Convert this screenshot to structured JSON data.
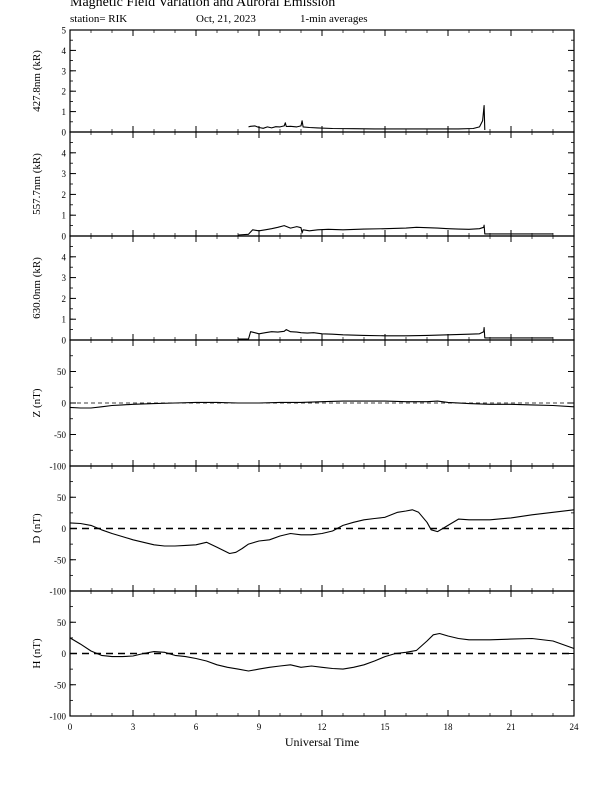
{
  "header": {
    "title": "Magnetic Field Variation and Auroral Emission",
    "station": "station= RIK",
    "date": "Oct, 21, 2023",
    "averaging": "1-min averages"
  },
  "chart_data": [
    {
      "type": "line",
      "ylabel": "427.8nm (kR)",
      "ylim": [
        0,
        5
      ],
      "yticks": [
        0,
        1,
        2,
        3,
        4,
        5
      ],
      "baseline": false,
      "x": [
        8.5,
        8.6,
        8.8,
        9.0,
        9.2,
        9.4,
        9.6,
        9.8,
        10.0,
        10.2,
        10.25,
        10.3,
        10.5,
        10.8,
        11.0,
        11.05,
        11.1,
        11.4,
        11.8,
        12.5,
        13.5,
        14.5,
        15.5,
        16.5,
        17.5,
        18.5,
        19.2,
        19.5,
        19.65,
        19.72,
        19.75
      ],
      "y": [
        0.25,
        0.28,
        0.3,
        0.22,
        0.18,
        0.25,
        0.2,
        0.26,
        0.25,
        0.3,
        0.45,
        0.27,
        0.28,
        0.25,
        0.3,
        0.55,
        0.25,
        0.22,
        0.2,
        0.17,
        0.16,
        0.15,
        0.15,
        0.15,
        0.15,
        0.15,
        0.17,
        0.25,
        0.55,
        1.3,
        0.1
      ]
    },
    {
      "type": "line",
      "ylabel": "557.7nm (kR)",
      "ylim": [
        0,
        5
      ],
      "yticks": [
        0,
        1,
        2,
        3,
        4
      ],
      "baseline": false,
      "x": [
        8.0,
        8.5,
        8.7,
        9.0,
        9.3,
        9.6,
        9.9,
        10.2,
        10.5,
        10.8,
        11.0,
        11.05,
        11.1,
        11.4,
        11.8,
        12.3,
        13.0,
        14.0,
        15.0,
        16.0,
        16.5,
        17.0,
        17.5,
        18.0,
        18.5,
        19.0,
        19.5,
        19.7,
        19.72,
        19.75,
        20.5,
        21.5,
        22.5,
        23.0
      ],
      "y": [
        0.05,
        0.08,
        0.3,
        0.25,
        0.3,
        0.35,
        0.42,
        0.5,
        0.38,
        0.45,
        0.4,
        0.15,
        0.3,
        0.25,
        0.3,
        0.32,
        0.3,
        0.33,
        0.35,
        0.38,
        0.42,
        0.4,
        0.38,
        0.35,
        0.33,
        0.32,
        0.35,
        0.42,
        0.52,
        0.1,
        0.1,
        0.1,
        0.1,
        0.1
      ]
    },
    {
      "type": "line",
      "ylabel": "630.0nm (kR)",
      "ylim": [
        0,
        5
      ],
      "yticks": [
        0,
        1,
        2,
        3,
        4
      ],
      "baseline": false,
      "x": [
        8.0,
        8.5,
        8.6,
        8.8,
        9.0,
        9.3,
        9.6,
        9.9,
        10.2,
        10.3,
        10.5,
        10.8,
        11.0,
        11.3,
        11.6,
        12.0,
        12.5,
        13.0,
        14.0,
        15.0,
        16.0,
        17.0,
        18.0,
        19.0,
        19.5,
        19.7,
        19.72,
        19.75,
        20.5,
        21.5,
        22.5,
        23.0
      ],
      "y": [
        0.05,
        0.05,
        0.4,
        0.35,
        0.3,
        0.35,
        0.4,
        0.38,
        0.42,
        0.5,
        0.4,
        0.38,
        0.35,
        0.33,
        0.35,
        0.3,
        0.28,
        0.25,
        0.22,
        0.2,
        0.2,
        0.22,
        0.25,
        0.28,
        0.3,
        0.4,
        0.6,
        0.1,
        0.1,
        0.1,
        0.1,
        0.1
      ]
    },
    {
      "type": "line",
      "ylabel": "Z (nT)",
      "ylim": [
        -100,
        100
      ],
      "yticks": [
        -100,
        -50,
        0,
        50
      ],
      "baseline": true,
      "x": [
        0,
        0.5,
        1,
        1.5,
        2,
        2.5,
        3,
        4,
        5,
        6,
        7,
        8,
        9,
        10,
        11,
        12,
        13,
        14,
        15,
        16,
        17,
        17.5,
        18,
        19,
        20,
        21,
        22,
        23,
        24
      ],
      "y": [
        -7,
        -8,
        -8,
        -6,
        -4,
        -3,
        -2,
        -1,
        0,
        1,
        1,
        0,
        0,
        1,
        1,
        2,
        3,
        3,
        3,
        2,
        2,
        3,
        1,
        -1,
        -2,
        -2,
        -3,
        -4,
        -6
      ]
    },
    {
      "type": "line",
      "ylabel": "D (nT)",
      "ylim": [
        -100,
        100
      ],
      "yticks": [
        -100,
        -50,
        0,
        50
      ],
      "baseline": true,
      "x": [
        0,
        0.5,
        1,
        1.5,
        2,
        2.5,
        3,
        3.5,
        4,
        4.5,
        5,
        5.5,
        6,
        6.5,
        7,
        7.3,
        7.6,
        7.9,
        8.2,
        8.5,
        9,
        9.5,
        10,
        10.5,
        11,
        11.5,
        12,
        12.5,
        13,
        13.5,
        14,
        14.5,
        15,
        15.3,
        15.6,
        16,
        16.3,
        16.6,
        17,
        17.2,
        17.5,
        18,
        18.5,
        19,
        20,
        21,
        22,
        23,
        24
      ],
      "y": [
        9,
        8,
        5,
        -2,
        -8,
        -13,
        -18,
        -22,
        -26,
        -28,
        -28,
        -27,
        -26,
        -22,
        -30,
        -35,
        -40,
        -38,
        -32,
        -25,
        -20,
        -18,
        -12,
        -8,
        -10,
        -10,
        -8,
        -4,
        5,
        10,
        14,
        16,
        18,
        22,
        26,
        28,
        30,
        26,
        10,
        -2,
        -5,
        5,
        15,
        14,
        14,
        17,
        22,
        26,
        30
      ]
    },
    {
      "type": "line",
      "ylabel": "H (nT)",
      "ylim": [
        -100,
        100
      ],
      "yticks": [
        -100,
        -50,
        0,
        50
      ],
      "baseline": true,
      "x": [
        0,
        0.5,
        1,
        1.5,
        2,
        2.5,
        3,
        3.5,
        4,
        4.5,
        5,
        5.5,
        6,
        6.5,
        7,
        7.5,
        8,
        8.5,
        9,
        9.5,
        10,
        10.5,
        11,
        11.5,
        12,
        12.5,
        13,
        13.5,
        14,
        14.5,
        15,
        15.5,
        16,
        16.5,
        17,
        17.3,
        17.6,
        18,
        18.5,
        19,
        20,
        21,
        22,
        23,
        24
      ],
      "y": [
        25,
        15,
        4,
        -3,
        -5,
        -5,
        -4,
        0,
        3,
        2,
        -3,
        -5,
        -8,
        -12,
        -18,
        -22,
        -25,
        -28,
        -25,
        -22,
        -20,
        -18,
        -22,
        -20,
        -22,
        -24,
        -25,
        -22,
        -18,
        -12,
        -5,
        0,
        2,
        5,
        20,
        30,
        32,
        28,
        24,
        22,
        22,
        23,
        24,
        20,
        8
      ]
    }
  ],
  "xaxis": {
    "label": "Universal Time",
    "ticks": [
      0,
      3,
      6,
      9,
      12,
      15,
      18,
      21,
      24
    ],
    "xlim": [
      0,
      24
    ]
  }
}
